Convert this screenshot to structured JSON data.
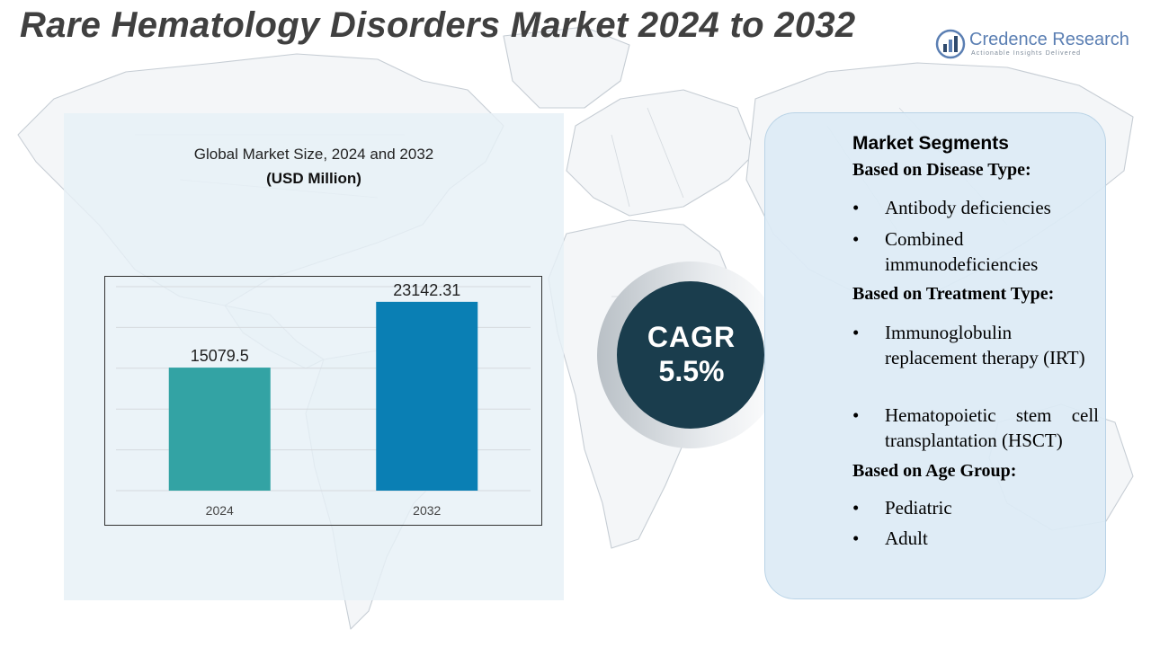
{
  "title": "Rare Hematology Disorders Market 2024 to 2032",
  "logo": {
    "name": "Credence Research",
    "tagline": "Actionable Insights Delivered",
    "icon": "bar-chart-logo-icon"
  },
  "chart_panel": {
    "title": "Global Market Size, 2024 and 2032",
    "subtitle": "(USD Million)"
  },
  "chart_data": {
    "type": "bar",
    "title": "Global Market Size, 2024 and 2032",
    "ylabel": "USD Million",
    "xlabel": "",
    "categories": [
      "2024",
      "2032"
    ],
    "values": [
      15079.5,
      23142.31
    ],
    "data_labels": [
      "15079.5",
      "23142.31"
    ],
    "colors": [
      "#33a3a4",
      "#0a7fb4"
    ],
    "ylim": [
      0,
      25000
    ],
    "gridlines": true,
    "legend": "none"
  },
  "cagr": {
    "label": "CAGR",
    "value": "5.5%"
  },
  "segments": {
    "heading": "Market Segments",
    "groups": [
      {
        "title": "Based on Disease Type:",
        "items": [
          "Antibody deficiencies",
          "Combined immunodeficiencies"
        ]
      },
      {
        "title": "Based on Treatment Type:",
        "items": [
          "Immunoglobulin replacement therapy (IRT)",
          "Hematopoietic stem cell transplantation (HSCT)"
        ]
      },
      {
        "title": "Based on Age Group:",
        "items": [
          "Pediatric",
          "Adult"
        ]
      }
    ]
  },
  "colors": {
    "title_text": "#404040",
    "cagr_circle": "#1a3d4d",
    "panel_bg": "#e6f0f7",
    "accent_blue": "#5b7fb3"
  }
}
